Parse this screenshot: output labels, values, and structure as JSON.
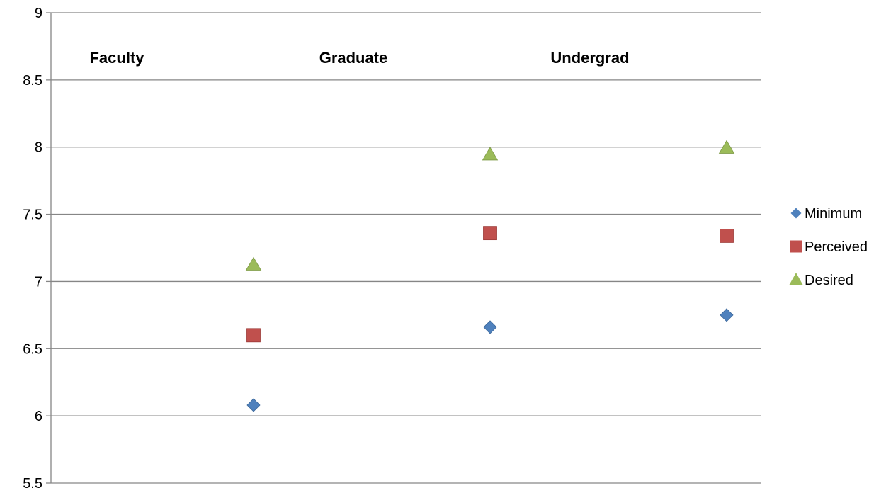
{
  "chart_data": {
    "type": "scatter",
    "categories": [
      "Faculty",
      "Graduate",
      "Undergrad"
    ],
    "series": [
      {
        "name": "Minimum",
        "values": [
          6.08,
          6.66,
          6.75
        ],
        "color": "#4F81BD",
        "marker": "diamond"
      },
      {
        "name": "Perceived",
        "values": [
          6.6,
          7.36,
          7.34
        ],
        "color": "#C0504D",
        "marker": "square"
      },
      {
        "name": "Desired",
        "values": [
          7.12,
          7.94,
          7.99
        ],
        "color": "#9BBB59",
        "marker": "triangle"
      }
    ],
    "ylim": [
      5.5,
      9
    ],
    "yticks": [
      "5.5",
      "6",
      "6.5",
      "7",
      "7.5",
      "8",
      "8.5",
      "9"
    ],
    "grid": true,
    "legend": "right"
  }
}
